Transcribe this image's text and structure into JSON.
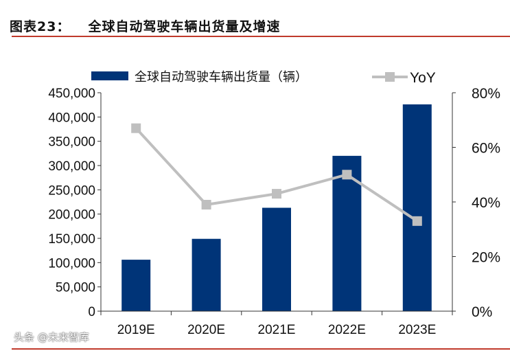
{
  "title": {
    "label": "图表23：",
    "text": "全球自动驾驶车辆出货量及增速"
  },
  "watermark": "头条 @未来智库",
  "chart_data": {
    "type": "bar+line",
    "categories": [
      "2019E",
      "2020E",
      "2021E",
      "2022E",
      "2023E"
    ],
    "series": [
      {
        "name": "全球自动驾驶车辆出货量（辆）",
        "type": "bar",
        "axis": "left",
        "color": "#003478",
        "values": [
          106000,
          149000,
          213000,
          320000,
          426000
        ]
      },
      {
        "name": "YoY",
        "type": "line",
        "axis": "right",
        "color": "#bfbfbf",
        "values": [
          67,
          39,
          43,
          50,
          33
        ]
      }
    ],
    "left_axis": {
      "ylim": [
        0,
        450000
      ],
      "ticks": [
        "0",
        "50,000",
        "100,000",
        "150,000",
        "200,000",
        "250,000",
        "300,000",
        "350,000",
        "400,000",
        "450,000"
      ]
    },
    "right_axis": {
      "ylim": [
        0,
        80
      ],
      "ticks": [
        "0%",
        "20%",
        "40%",
        "60%",
        "80%"
      ]
    },
    "legend_placement": "top",
    "grid": false
  }
}
